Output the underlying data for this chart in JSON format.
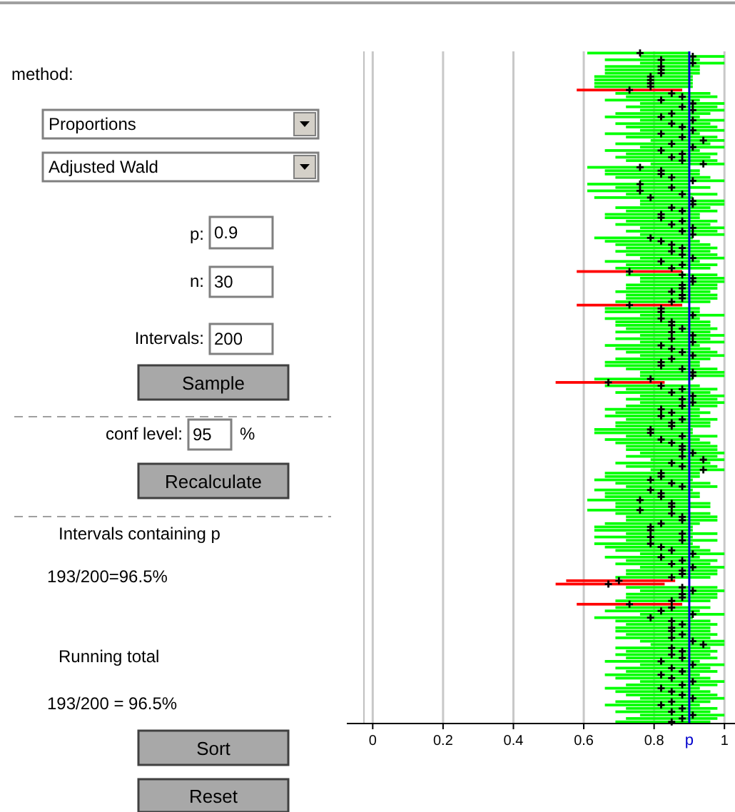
{
  "chart_data": {
    "type": "bar",
    "orientation": "horizontal",
    "marker": "cross",
    "grid": "x",
    "tick_labels": "x",
    "xlim": [
      -0.025,
      1.03
    ],
    "xticks": [
      0,
      0.2,
      0.4,
      0.6,
      0.8,
      1
    ],
    "ref_lines": [
      {
        "axis": "x",
        "value": 0.9,
        "label": "p",
        "color": "#0000cc"
      }
    ],
    "annotations": [
      "method:",
      "Proportions",
      "Adjusted Wald",
      "p:",
      "0.9",
      "n:",
      "30",
      "Intervals:",
      "200",
      "Sample",
      "conf level:",
      "95",
      "%",
      "Recalculate",
      "Intervals containing p",
      "193/200=96.5%",
      "Running total",
      "193/200 = 96.5%",
      "Sort",
      "Reset"
    ],
    "categories": [
      null,
      null,
      null,
      null,
      null,
      null,
      null,
      null,
      null,
      null,
      null,
      null,
      null,
      null,
      null,
      null,
      null,
      null,
      null,
      null,
      null,
      null,
      null,
      null,
      null,
      null,
      null,
      null,
      null,
      null,
      null,
      null,
      null,
      null,
      null,
      null,
      null,
      null,
      null,
      null,
      null,
      null,
      null,
      null,
      null,
      null,
      null,
      null,
      null,
      null,
      null,
      null,
      null,
      null,
      null,
      null,
      null,
      null,
      null,
      null,
      null,
      null,
      null,
      null,
      null,
      null,
      null,
      null,
      null,
      null,
      null,
      null,
      null,
      null,
      null,
      null,
      null,
      null,
      null,
      null,
      null,
      null,
      null,
      null,
      null,
      null,
      null,
      null,
      null,
      null,
      null,
      null,
      null,
      null,
      null,
      null,
      null,
      null,
      null,
      null,
      null,
      null,
      null,
      null,
      null,
      null,
      null,
      null,
      null,
      null,
      null,
      null,
      null,
      null,
      null,
      null,
      null,
      null,
      null,
      null,
      null,
      null,
      null,
      null,
      null,
      null,
      null,
      null,
      null,
      null,
      null,
      null,
      null,
      null,
      null,
      null,
      null,
      null,
      null,
      null,
      null,
      null,
      null,
      null,
      null,
      null,
      null,
      null,
      null,
      null,
      null,
      null,
      null,
      null,
      null,
      null,
      null,
      null,
      null,
      null,
      null,
      null,
      null,
      null,
      null,
      null,
      null,
      null,
      null,
      null,
      null,
      null,
      null,
      null,
      null,
      null,
      null,
      null,
      null,
      null,
      null,
      null,
      null,
      null,
      null,
      null,
      null,
      null,
      null,
      null,
      null,
      null,
      null,
      null,
      null,
      null,
      null,
      null,
      null,
      null
    ],
    "series": [
      {
        "base": [
          0.61,
          0.76,
          0.66,
          0.76,
          0.66,
          0.66,
          0.66,
          0.63,
          0.63,
          0.63,
          0.63,
          0.58,
          0.69,
          0.72,
          0.66,
          0.76,
          0.72,
          0.76,
          0.69,
          0.66,
          0.76,
          0.69,
          0.72,
          0.76,
          0.66,
          0.72,
          0.79,
          0.69,
          0.76,
          0.66,
          0.72,
          0.69,
          0.72,
          0.79,
          0.61,
          0.66,
          0.66,
          0.69,
          0.76,
          0.61,
          0.69,
          0.61,
          0.72,
          0.63,
          0.76,
          0.76,
          0.69,
          0.72,
          0.66,
          0.66,
          0.72,
          0.69,
          0.76,
          0.72,
          0.76,
          0.63,
          0.66,
          0.69,
          0.72,
          0.69,
          0.72,
          0.76,
          0.66,
          0.72,
          0.69,
          0.58,
          0.72,
          0.76,
          0.76,
          0.72,
          0.72,
          0.69,
          0.72,
          0.72,
          0.69,
          0.58,
          0.66,
          0.66,
          0.76,
          0.66,
          0.69,
          0.69,
          0.72,
          0.69,
          0.76,
          0.69,
          0.76,
          0.66,
          0.69,
          0.72,
          0.76,
          0.69,
          0.66,
          0.66,
          0.72,
          0.76,
          0.76,
          0.63,
          0.52,
          0.66,
          0.72,
          0.69,
          0.76,
          0.72,
          0.76,
          0.72,
          0.66,
          0.69,
          0.66,
          0.72,
          0.69,
          0.69,
          0.63,
          0.63,
          0.72,
          0.66,
          0.69,
          0.72,
          0.72,
          0.76,
          0.72,
          0.79,
          0.69,
          0.72,
          0.79,
          0.66,
          0.66,
          0.63,
          0.69,
          0.72,
          0.63,
          0.66,
          0.66,
          0.61,
          0.69,
          0.69,
          0.61,
          0.69,
          0.72,
          0.72,
          0.66,
          0.63,
          0.63,
          0.72,
          0.63,
          0.72,
          0.63,
          0.66,
          0.69,
          0.76,
          0.66,
          0.72,
          0.69,
          0.76,
          0.72,
          0.72,
          0.69,
          0.55,
          0.52,
          0.72,
          0.76,
          0.72,
          0.72,
          0.69,
          0.58,
          0.69,
          0.66,
          0.76,
          0.63,
          0.69,
          0.72,
          0.69,
          0.69,
          0.72,
          0.69,
          0.76,
          0.79,
          0.69,
          0.72,
          0.69,
          0.72,
          0.66,
          0.76,
          0.69,
          0.72,
          0.66,
          0.69,
          0.76,
          0.72,
          0.66,
          0.69,
          0.72,
          0.76,
          0.69,
          0.66,
          0.72,
          0.69,
          0.76,
          0.72,
          0.69
        ],
        "values": [
          0.29,
          0.24,
          0.27,
          0.24,
          0.27,
          0.27,
          0.27,
          0.28,
          0.28,
          0.28,
          0.28,
          0.3,
          0.27,
          0.26,
          0.27,
          0.24,
          0.26,
          0.24,
          0.27,
          0.27,
          0.24,
          0.27,
          0.26,
          0.24,
          0.27,
          0.26,
          0.21,
          0.27,
          0.24,
          0.27,
          0.26,
          0.27,
          0.26,
          0.21,
          0.29,
          0.27,
          0.27,
          0.27,
          0.24,
          0.29,
          0.27,
          0.29,
          0.26,
          0.28,
          0.24,
          0.24,
          0.27,
          0.26,
          0.27,
          0.27,
          0.26,
          0.27,
          0.24,
          0.26,
          0.24,
          0.28,
          0.27,
          0.27,
          0.26,
          0.27,
          0.26,
          0.24,
          0.27,
          0.26,
          0.27,
          0.3,
          0.26,
          0.24,
          0.24,
          0.26,
          0.26,
          0.27,
          0.26,
          0.26,
          0.27,
          0.3,
          0.27,
          0.27,
          0.24,
          0.27,
          0.27,
          0.27,
          0.26,
          0.27,
          0.24,
          0.27,
          0.24,
          0.27,
          0.27,
          0.26,
          0.24,
          0.27,
          0.27,
          0.27,
          0.26,
          0.24,
          0.24,
          0.28,
          0.31,
          0.27,
          0.26,
          0.27,
          0.24,
          0.26,
          0.24,
          0.26,
          0.27,
          0.27,
          0.27,
          0.26,
          0.27,
          0.27,
          0.28,
          0.28,
          0.26,
          0.27,
          0.27,
          0.26,
          0.26,
          0.24,
          0.26,
          0.21,
          0.27,
          0.26,
          0.21,
          0.27,
          0.27,
          0.28,
          0.27,
          0.26,
          0.28,
          0.27,
          0.27,
          0.29,
          0.27,
          0.27,
          0.29,
          0.27,
          0.26,
          0.26,
          0.27,
          0.28,
          0.28,
          0.26,
          0.28,
          0.26,
          0.28,
          0.27,
          0.27,
          0.24,
          0.27,
          0.26,
          0.27,
          0.24,
          0.26,
          0.26,
          0.27,
          0.31,
          0.31,
          0.26,
          0.24,
          0.26,
          0.26,
          0.27,
          0.3,
          0.27,
          0.27,
          0.24,
          0.28,
          0.27,
          0.26,
          0.27,
          0.27,
          0.26,
          0.27,
          0.24,
          0.21,
          0.27,
          0.26,
          0.27,
          0.26,
          0.27,
          0.24,
          0.27,
          0.26,
          0.27,
          0.27,
          0.24,
          0.26,
          0.27,
          0.27,
          0.26,
          0.24,
          0.27,
          0.27,
          0.26,
          0.27,
          0.24,
          0.26,
          0.27
        ],
        "colors": [
          "#00ff00",
          "#00ff00",
          "#00ff00",
          "#00ff00",
          "#00ff00",
          "#00ff00",
          "#00ff00",
          "#00ff00",
          "#00ff00",
          "#00ff00",
          "#00ff00",
          "#ff0000",
          "#00ff00",
          "#00ff00",
          "#00ff00",
          "#00ff00",
          "#00ff00",
          "#00ff00",
          "#00ff00",
          "#00ff00",
          "#00ff00",
          "#00ff00",
          "#00ff00",
          "#00ff00",
          "#00ff00",
          "#00ff00",
          "#00ff00",
          "#00ff00",
          "#00ff00",
          "#00ff00",
          "#00ff00",
          "#00ff00",
          "#00ff00",
          "#00ff00",
          "#00ff00",
          "#00ff00",
          "#00ff00",
          "#00ff00",
          "#00ff00",
          "#00ff00",
          "#00ff00",
          "#00ff00",
          "#00ff00",
          "#00ff00",
          "#00ff00",
          "#00ff00",
          "#00ff00",
          "#00ff00",
          "#00ff00",
          "#00ff00",
          "#00ff00",
          "#00ff00",
          "#00ff00",
          "#00ff00",
          "#00ff00",
          "#00ff00",
          "#00ff00",
          "#00ff00",
          "#00ff00",
          "#00ff00",
          "#00ff00",
          "#00ff00",
          "#00ff00",
          "#00ff00",
          "#00ff00",
          "#ff0000",
          "#00ff00",
          "#00ff00",
          "#00ff00",
          "#00ff00",
          "#00ff00",
          "#00ff00",
          "#00ff00",
          "#00ff00",
          "#00ff00",
          "#ff0000",
          "#00ff00",
          "#00ff00",
          "#00ff00",
          "#00ff00",
          "#00ff00",
          "#00ff00",
          "#00ff00",
          "#00ff00",
          "#00ff00",
          "#00ff00",
          "#00ff00",
          "#00ff00",
          "#00ff00",
          "#00ff00",
          "#00ff00",
          "#00ff00",
          "#00ff00",
          "#00ff00",
          "#00ff00",
          "#00ff00",
          "#00ff00",
          "#00ff00",
          "#ff0000",
          "#00ff00",
          "#00ff00",
          "#00ff00",
          "#00ff00",
          "#00ff00",
          "#00ff00",
          "#00ff00",
          "#00ff00",
          "#00ff00",
          "#00ff00",
          "#00ff00",
          "#00ff00",
          "#00ff00",
          "#00ff00",
          "#00ff00",
          "#00ff00",
          "#00ff00",
          "#00ff00",
          "#00ff00",
          "#00ff00",
          "#00ff00",
          "#00ff00",
          "#00ff00",
          "#00ff00",
          "#00ff00",
          "#00ff00",
          "#00ff00",
          "#00ff00",
          "#00ff00",
          "#00ff00",
          "#00ff00",
          "#00ff00",
          "#00ff00",
          "#00ff00",
          "#00ff00",
          "#00ff00",
          "#00ff00",
          "#00ff00",
          "#00ff00",
          "#00ff00",
          "#00ff00",
          "#00ff00",
          "#00ff00",
          "#00ff00",
          "#00ff00",
          "#00ff00",
          "#00ff00",
          "#00ff00",
          "#00ff00",
          "#00ff00",
          "#00ff00",
          "#00ff00",
          "#00ff00",
          "#00ff00",
          "#00ff00",
          "#00ff00",
          "#00ff00",
          "#00ff00",
          "#ff0000",
          "#ff0000",
          "#00ff00",
          "#00ff00",
          "#00ff00",
          "#00ff00",
          "#00ff00",
          "#ff0000",
          "#00ff00",
          "#00ff00",
          "#00ff00",
          "#00ff00",
          "#00ff00",
          "#00ff00",
          "#00ff00",
          "#00ff00",
          "#00ff00",
          "#00ff00",
          "#00ff00",
          "#00ff00",
          "#00ff00",
          "#00ff00",
          "#00ff00",
          "#00ff00",
          "#00ff00",
          "#00ff00",
          "#00ff00",
          "#00ff00",
          "#00ff00",
          "#00ff00",
          "#00ff00",
          "#00ff00",
          "#00ff00",
          "#00ff00",
          "#00ff00",
          "#00ff00",
          "#00ff00",
          "#00ff00",
          "#00ff00",
          "#00ff00",
          "#00ff00",
          "#00ff00",
          "#00ff00"
        ]
      },
      {
        "type": "scatter",
        "color": "#000000",
        "values": [
          0.76,
          0.91,
          0.82,
          0.91,
          0.82,
          0.82,
          0.82,
          0.79,
          0.79,
          0.79,
          0.79,
          0.73,
          0.85,
          0.88,
          0.82,
          0.91,
          0.88,
          0.91,
          0.85,
          0.82,
          0.91,
          0.85,
          0.88,
          0.91,
          0.82,
          0.88,
          0.94,
          0.85,
          0.91,
          0.82,
          0.88,
          0.85,
          0.88,
          0.94,
          0.76,
          0.82,
          0.82,
          0.85,
          0.91,
          0.76,
          0.85,
          0.76,
          0.88,
          0.79,
          0.91,
          0.91,
          0.85,
          0.88,
          0.82,
          0.82,
          0.88,
          0.85,
          0.91,
          0.88,
          0.91,
          0.79,
          0.82,
          0.85,
          0.88,
          0.85,
          0.88,
          0.91,
          0.82,
          0.88,
          0.85,
          0.73,
          0.88,
          0.91,
          0.91,
          0.88,
          0.88,
          0.85,
          0.88,
          0.88,
          0.85,
          0.73,
          0.82,
          0.82,
          0.91,
          0.82,
          0.85,
          0.85,
          0.88,
          0.85,
          0.91,
          0.85,
          0.91,
          0.82,
          0.85,
          0.88,
          0.91,
          0.85,
          0.82,
          0.82,
          0.88,
          0.91,
          0.91,
          0.79,
          0.67,
          0.82,
          0.88,
          0.85,
          0.91,
          0.88,
          0.91,
          0.88,
          0.82,
          0.85,
          0.82,
          0.88,
          0.85,
          0.85,
          0.79,
          0.79,
          0.88,
          0.82,
          0.85,
          0.88,
          0.88,
          0.91,
          0.88,
          0.94,
          0.85,
          0.88,
          0.94,
          0.82,
          0.82,
          0.79,
          0.85,
          0.88,
          0.79,
          0.82,
          0.82,
          0.76,
          0.85,
          0.85,
          0.76,
          0.85,
          0.88,
          0.88,
          0.82,
          0.79,
          0.79,
          0.88,
          0.79,
          0.88,
          0.79,
          0.82,
          0.85,
          0.91,
          0.82,
          0.88,
          0.85,
          0.91,
          0.88,
          0.88,
          0.85,
          0.7,
          0.67,
          0.88,
          0.91,
          0.88,
          0.88,
          0.85,
          0.73,
          0.85,
          0.82,
          0.91,
          0.79,
          0.85,
          0.88,
          0.85,
          0.85,
          0.88,
          0.85,
          0.91,
          0.94,
          0.85,
          0.88,
          0.85,
          0.88,
          0.82,
          0.91,
          0.85,
          0.88,
          0.82,
          0.85,
          0.91,
          0.88,
          0.82,
          0.85,
          0.88,
          0.91,
          0.85,
          0.82,
          0.88,
          0.85,
          0.91,
          0.88,
          0.85
        ]
      }
    ]
  }
}
